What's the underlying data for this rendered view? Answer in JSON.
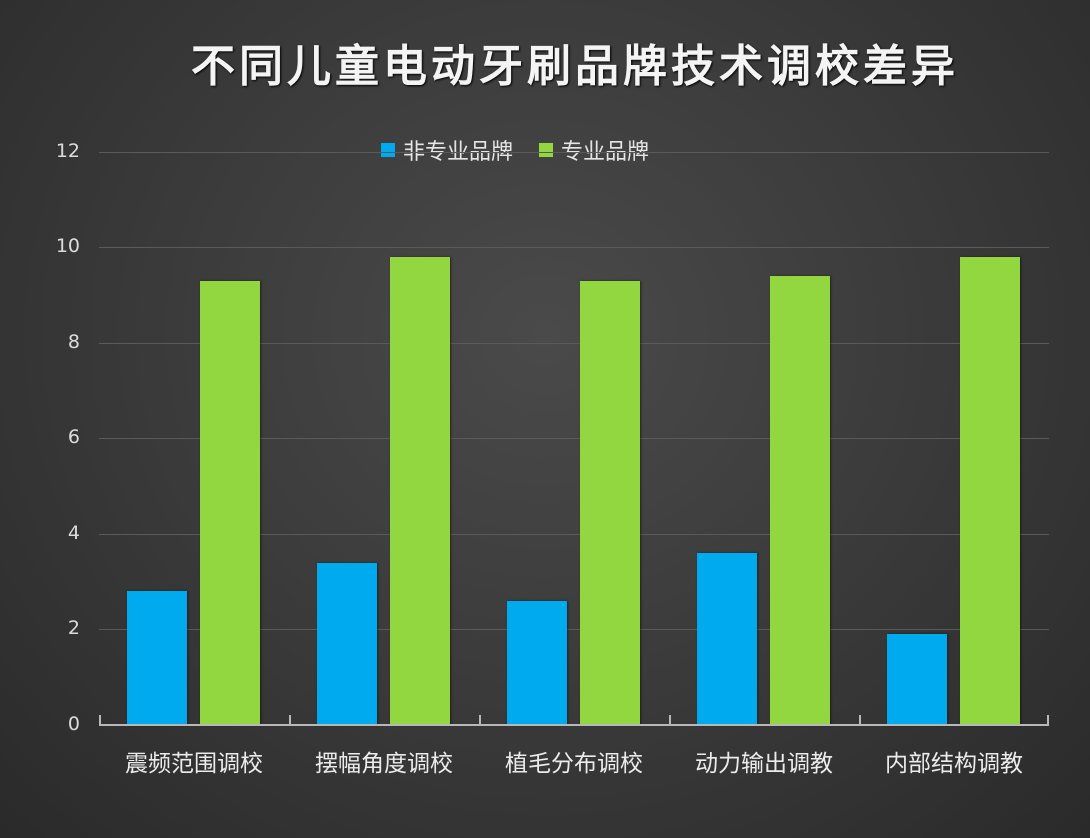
{
  "chart_data": {
    "type": "bar",
    "title": "不同儿童电动牙刷品牌技术调校差异",
    "xlabel": "",
    "ylabel": "",
    "ylim": [
      0,
      12
    ],
    "yticks": [
      "0",
      "2",
      "4",
      "6",
      "8",
      "10",
      "12"
    ],
    "grid": true,
    "legend_position": "top",
    "categories": [
      "震频范围调校",
      "摆幅角度调校",
      "植毛分布调校",
      "动力输出调教",
      "内部结构调教"
    ],
    "series": [
      {
        "name": "非专业品牌",
        "color": "#00aaee",
        "values": [
          2.8,
          3.4,
          2.6,
          3.6,
          1.9
        ]
      },
      {
        "name": "专业品牌",
        "color": "#92d640",
        "values": [
          9.3,
          9.8,
          9.3,
          9.4,
          9.8
        ]
      }
    ]
  }
}
